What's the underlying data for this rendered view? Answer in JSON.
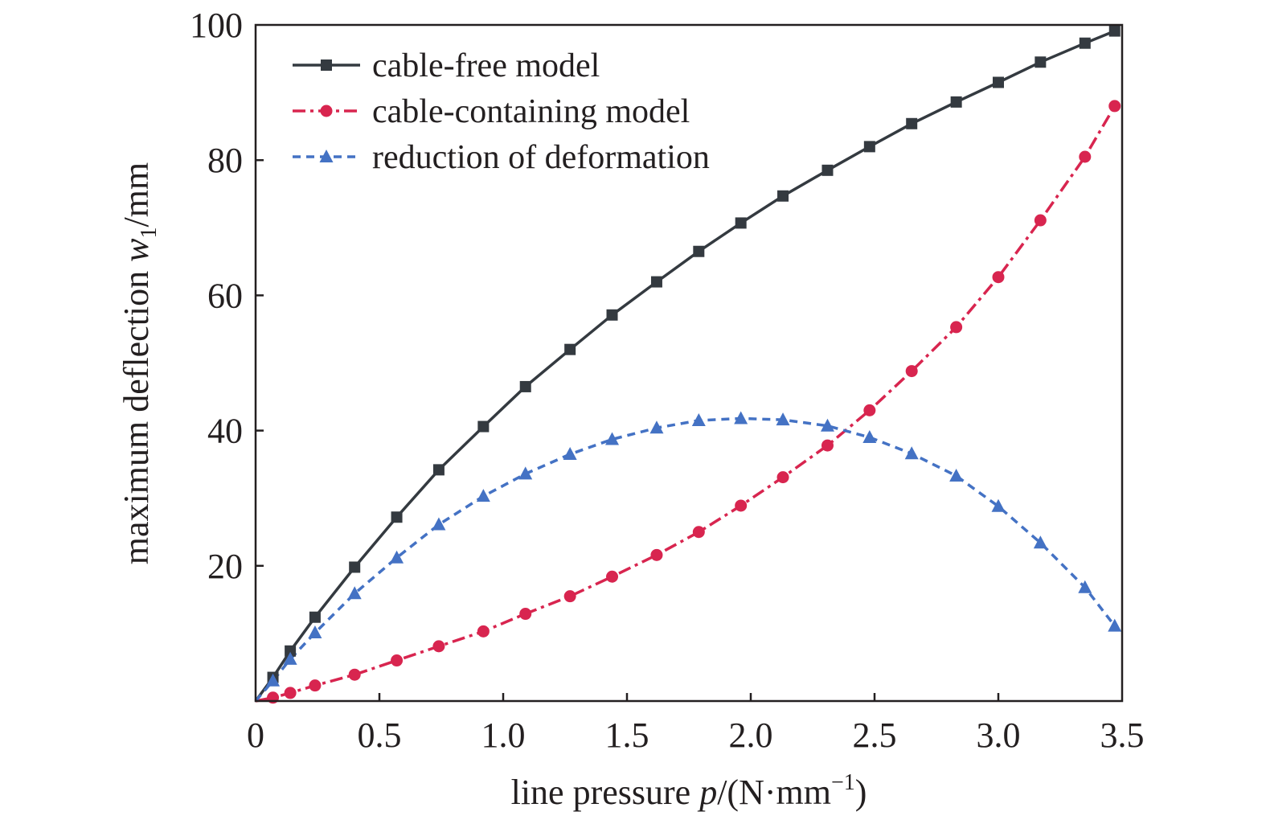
{
  "chart_data": {
    "type": "line",
    "title": "",
    "xlabel": {
      "prefix": "line pressure ",
      "var": "p",
      "mid": "/(N·mm",
      "sup": "−1",
      "suffix": ")"
    },
    "ylabel": {
      "prefix": "maximum deflection ",
      "var": "w",
      "sub": "1",
      "suffix": "/mm"
    },
    "xlim": [
      0,
      3.5
    ],
    "ylim": [
      0,
      100
    ],
    "xticks": [
      0,
      0.5,
      1.0,
      1.5,
      2.0,
      2.5,
      3.0,
      3.5
    ],
    "xtick_labels": [
      "0",
      "0.5",
      "1.0",
      "1.5",
      "2.0",
      "2.5",
      "3.0",
      "3.5"
    ],
    "yticks": [
      20,
      40,
      60,
      80,
      100
    ],
    "ytick_labels": [
      "20",
      "40",
      "60",
      "80",
      "100"
    ],
    "grid": false,
    "legend_position": "top-left",
    "x": [
      0.07,
      0.14,
      0.24,
      0.4,
      0.57,
      0.74,
      0.92,
      1.09,
      1.27,
      1.44,
      1.62,
      1.79,
      1.96,
      2.13,
      2.31,
      2.48,
      2.65,
      2.83,
      3.0,
      3.17,
      3.35,
      3.47
    ],
    "series": [
      {
        "name": "cable-free model",
        "color": "#343a40",
        "line_style": "solid",
        "marker": "square",
        "values": [
          3.5,
          7.4,
          12.4,
          19.8,
          27.2,
          34.2,
          40.6,
          46.5,
          52.0,
          57.1,
          62.0,
          66.5,
          70.7,
          74.7,
          78.5,
          82.0,
          85.4,
          88.6,
          91.5,
          94.5,
          97.3,
          99.1
        ]
      },
      {
        "name": "cable-containing model",
        "color": "#d8254f",
        "line_style": "dash-dot",
        "marker": "circle",
        "values": [
          0.5,
          1.2,
          2.3,
          3.9,
          6.0,
          8.1,
          10.3,
          12.9,
          15.5,
          18.4,
          21.6,
          25.0,
          28.9,
          33.1,
          37.8,
          43.0,
          48.8,
          55.3,
          62.7,
          71.1,
          80.5,
          88.0
        ]
      },
      {
        "name": "reduction of deformation",
        "color": "#4472c4",
        "line_style": "dashed",
        "marker": "triangle",
        "values": [
          3.0,
          6.2,
          10.1,
          15.9,
          21.2,
          26.1,
          30.3,
          33.6,
          36.5,
          38.7,
          40.4,
          41.5,
          41.8,
          41.6,
          40.7,
          39.0,
          36.6,
          33.3,
          28.8,
          23.4,
          16.8,
          11.1
        ]
      }
    ]
  }
}
